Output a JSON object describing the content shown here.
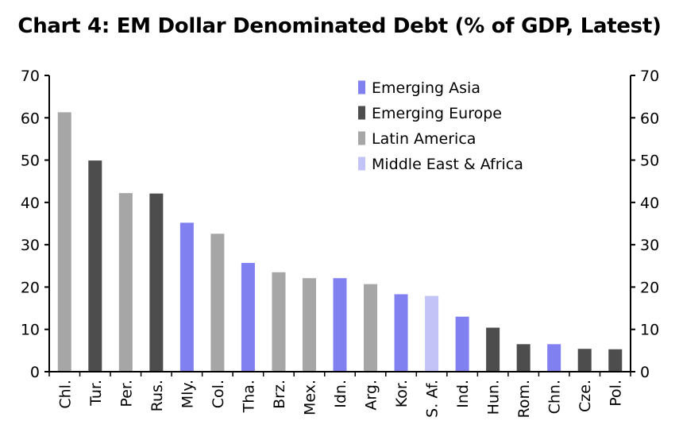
{
  "chart_data": {
    "type": "bar",
    "title": "Chart 4: EM Dollar Denominated Debt (% of GDP, Latest)",
    "categories": [
      "Chl.",
      "Tur.",
      "Per.",
      "Rus.",
      "Mly.",
      "Col.",
      "Tha.",
      "Brz.",
      "Mex.",
      "Idn.",
      "Arg.",
      "Kor.",
      "S. Af.",
      "Ind.",
      "Hun.",
      "Rom.",
      "Chn.",
      "Cze.",
      "Pol."
    ],
    "values": [
      61.3,
      49.9,
      42.2,
      42.1,
      35.2,
      32.6,
      25.7,
      23.5,
      22.1,
      22.1,
      20.7,
      18.3,
      17.9,
      13.0,
      10.4,
      6.5,
      6.5,
      5.4,
      5.3
    ],
    "groups": [
      "Latin America",
      "Emerging Europe",
      "Latin America",
      "Emerging Europe",
      "Emerging Asia",
      "Latin America",
      "Emerging Asia",
      "Latin America",
      "Latin America",
      "Emerging Asia",
      "Latin America",
      "Emerging Asia",
      "Middle East & Africa",
      "Emerging Asia",
      "Emerging Europe",
      "Emerging Europe",
      "Emerging Asia",
      "Emerging Europe",
      "Emerging Europe"
    ],
    "legend": [
      {
        "name": "Emerging Asia",
        "color": "#8080f0"
      },
      {
        "name": "Emerging Europe",
        "color": "#4d4d4d"
      },
      {
        "name": "Latin America",
        "color": "#a6a6a6"
      },
      {
        "name": "Middle East & Africa",
        "color": "#c3c3f8"
      }
    ],
    "legend_position": "top-right",
    "ylim": [
      0,
      70
    ],
    "yticks": [
      0,
      10,
      20,
      30,
      40,
      50,
      60,
      70
    ],
    "secondary_yticks": [
      0,
      10,
      20,
      30,
      40,
      50,
      60,
      70
    ],
    "grid": false,
    "xlabel": "",
    "ylabel": ""
  }
}
